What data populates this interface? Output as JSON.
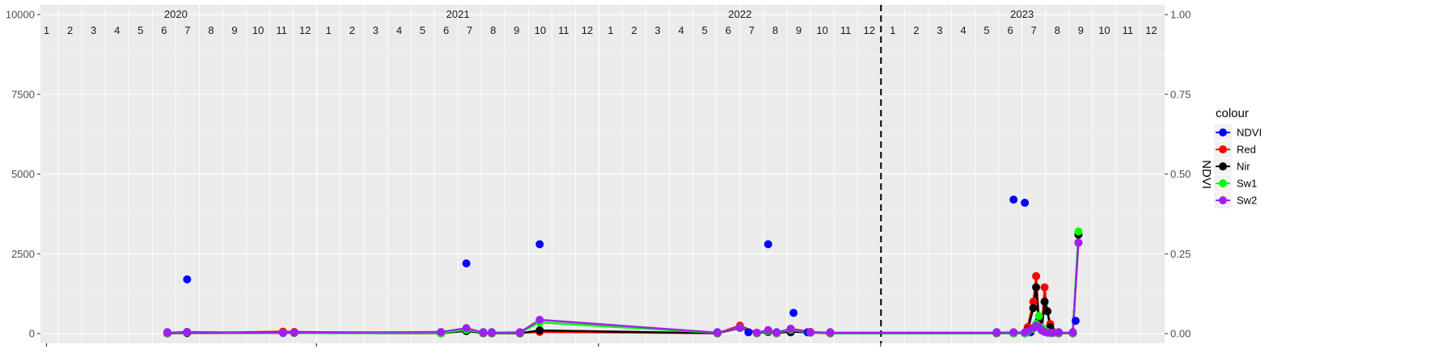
{
  "chart_data": {
    "type": "line",
    "title": "",
    "xlabel": "",
    "ylabel": "",
    "y2label": "NDVI",
    "ylim": [
      0,
      10000
    ],
    "y_ticks": [
      "0",
      "2500",
      "5000",
      "7500",
      "10000"
    ],
    "y2lim": [
      0,
      1
    ],
    "y2_ticks": [
      "0.00",
      "0.25",
      "0.50",
      "0.75",
      "1.00"
    ],
    "years": [
      "2020",
      "2021",
      "2022",
      "2023"
    ],
    "months": [
      "1",
      "2",
      "3",
      "4",
      "5",
      "6",
      "7",
      "8",
      "9",
      "10",
      "11",
      "12"
    ],
    "vline_x": 2023.0,
    "grid": true,
    "legend": {
      "title": "colour",
      "position": "right"
    },
    "series": [
      {
        "name": "NDVI",
        "color": "#0000FF",
        "axis": "secondary",
        "line": false,
        "points": [
          [
            2020.47,
            0.004
          ],
          [
            2020.54,
            0.005
          ],
          [
            2020.54,
            0.17
          ],
          [
            2020.88,
            0.004
          ],
          [
            2020.92,
            0.004
          ],
          [
            2021.44,
            0.004
          ],
          [
            2021.53,
            0.22
          ],
          [
            2021.59,
            0.004
          ],
          [
            2021.62,
            0.004
          ],
          [
            2021.72,
            0.004
          ],
          [
            2021.79,
            0.28
          ],
          [
            2022.42,
            0.004
          ],
          [
            2022.53,
            0.004
          ],
          [
            2022.6,
            0.28
          ],
          [
            2022.63,
            0.004
          ],
          [
            2022.68,
            0.004
          ],
          [
            2022.69,
            0.065
          ],
          [
            2022.74,
            0.004
          ],
          [
            2022.82,
            0.004
          ],
          [
            2023.41,
            0.004
          ],
          [
            2023.47,
            0.004
          ],
          [
            2023.47,
            0.42
          ],
          [
            2023.51,
            0.41
          ],
          [
            2023.53,
            0.004
          ],
          [
            2023.63,
            0.004
          ],
          [
            2023.68,
            0.004
          ],
          [
            2023.69,
            0.04
          ]
        ]
      },
      {
        "name": "Red",
        "color": "#FF0000",
        "axis": "primary",
        "line": true,
        "points": [
          [
            2020.47,
            10
          ],
          [
            2020.54,
            20
          ],
          [
            2020.88,
            60
          ],
          [
            2020.92,
            50
          ],
          [
            2021.44,
            20
          ],
          [
            2021.53,
            100
          ],
          [
            2021.59,
            20
          ],
          [
            2021.62,
            10
          ],
          [
            2021.72,
            20
          ],
          [
            2021.79,
            50
          ],
          [
            2022.42,
            10
          ],
          [
            2022.5,
            250
          ],
          [
            2022.56,
            20
          ],
          [
            2022.6,
            100
          ],
          [
            2022.63,
            20
          ],
          [
            2022.68,
            150
          ],
          [
            2022.75,
            50
          ],
          [
            2022.82,
            20
          ],
          [
            2023.41,
            20
          ],
          [
            2023.47,
            20
          ],
          [
            2023.51,
            20
          ],
          [
            2023.52,
            200
          ],
          [
            2023.54,
            1000
          ],
          [
            2023.55,
            1800
          ],
          [
            2023.56,
            400
          ],
          [
            2023.57,
            100
          ],
          [
            2023.58,
            1450
          ],
          [
            2023.59,
            700
          ],
          [
            2023.6,
            300
          ],
          [
            2023.61,
            50
          ],
          [
            2023.63,
            20
          ],
          [
            2023.68,
            20
          ],
          [
            2023.7,
            2850
          ]
        ]
      },
      {
        "name": "Nir",
        "color": "#000000",
        "axis": "primary",
        "line": true,
        "points": [
          [
            2020.47,
            10
          ],
          [
            2020.54,
            20
          ],
          [
            2020.88,
            20
          ],
          [
            2020.92,
            20
          ],
          [
            2021.44,
            10
          ],
          [
            2021.53,
            80
          ],
          [
            2021.59,
            10
          ],
          [
            2021.62,
            10
          ],
          [
            2021.72,
            10
          ],
          [
            2021.79,
            100
          ],
          [
            2022.42,
            10
          ],
          [
            2022.5,
            180
          ],
          [
            2022.56,
            10
          ],
          [
            2022.6,
            50
          ],
          [
            2022.63,
            10
          ],
          [
            2022.68,
            60
          ],
          [
            2022.75,
            30
          ],
          [
            2022.82,
            10
          ],
          [
            2023.41,
            10
          ],
          [
            2023.47,
            10
          ],
          [
            2023.51,
            10
          ],
          [
            2023.52,
            100
          ],
          [
            2023.54,
            800
          ],
          [
            2023.55,
            1450
          ],
          [
            2023.56,
            400
          ],
          [
            2023.57,
            100
          ],
          [
            2023.58,
            1000
          ],
          [
            2023.59,
            700
          ],
          [
            2023.6,
            200
          ],
          [
            2023.61,
            20
          ],
          [
            2023.63,
            10
          ],
          [
            2023.68,
            10
          ],
          [
            2023.7,
            3100
          ]
        ]
      },
      {
        "name": "Sw1",
        "color": "#00FF00",
        "axis": "primary",
        "line": true,
        "points": [
          [
            2020.47,
            20
          ],
          [
            2020.54,
            40
          ],
          [
            2020.88,
            20
          ],
          [
            2020.92,
            20
          ],
          [
            2021.44,
            20
          ],
          [
            2021.53,
            120
          ],
          [
            2021.59,
            20
          ],
          [
            2021.62,
            20
          ],
          [
            2021.72,
            30
          ],
          [
            2021.79,
            350
          ],
          [
            2022.42,
            20
          ],
          [
            2022.5,
            200
          ],
          [
            2022.56,
            20
          ],
          [
            2022.6,
            80
          ],
          [
            2022.63,
            20
          ],
          [
            2022.68,
            120
          ],
          [
            2022.75,
            30
          ],
          [
            2022.82,
            20
          ],
          [
            2023.41,
            20
          ],
          [
            2023.47,
            20
          ],
          [
            2023.51,
            20
          ],
          [
            2023.52,
            50
          ],
          [
            2023.54,
            150
          ],
          [
            2023.55,
            300
          ],
          [
            2023.56,
            550
          ],
          [
            2023.57,
            200
          ],
          [
            2023.58,
            100
          ],
          [
            2023.59,
            50
          ],
          [
            2023.6,
            20
          ],
          [
            2023.61,
            20
          ],
          [
            2023.63,
            20
          ],
          [
            2023.68,
            20
          ],
          [
            2023.7,
            3200
          ]
        ]
      },
      {
        "name": "Sw2",
        "color": "#A020F0",
        "axis": "primary",
        "line": true,
        "points": [
          [
            2020.47,
            30
          ],
          [
            2020.54,
            50
          ],
          [
            2020.88,
            20
          ],
          [
            2020.92,
            30
          ],
          [
            2021.44,
            50
          ],
          [
            2021.53,
            170
          ],
          [
            2021.59,
            30
          ],
          [
            2021.62,
            30
          ],
          [
            2021.72,
            40
          ],
          [
            2021.79,
            430
          ],
          [
            2022.42,
            30
          ],
          [
            2022.5,
            190
          ],
          [
            2022.56,
            30
          ],
          [
            2022.6,
            110
          ],
          [
            2022.63,
            30
          ],
          [
            2022.68,
            150
          ],
          [
            2022.75,
            40
          ],
          [
            2022.82,
            30
          ],
          [
            2023.41,
            30
          ],
          [
            2023.47,
            40
          ],
          [
            2023.51,
            40
          ],
          [
            2023.52,
            80
          ],
          [
            2023.54,
            180
          ],
          [
            2023.55,
            250
          ],
          [
            2023.56,
            200
          ],
          [
            2023.57,
            100
          ],
          [
            2023.58,
            50
          ],
          [
            2023.59,
            30
          ],
          [
            2023.6,
            30
          ],
          [
            2023.61,
            30
          ],
          [
            2023.63,
            30
          ],
          [
            2023.68,
            30
          ],
          [
            2023.7,
            2850
          ]
        ]
      }
    ]
  }
}
